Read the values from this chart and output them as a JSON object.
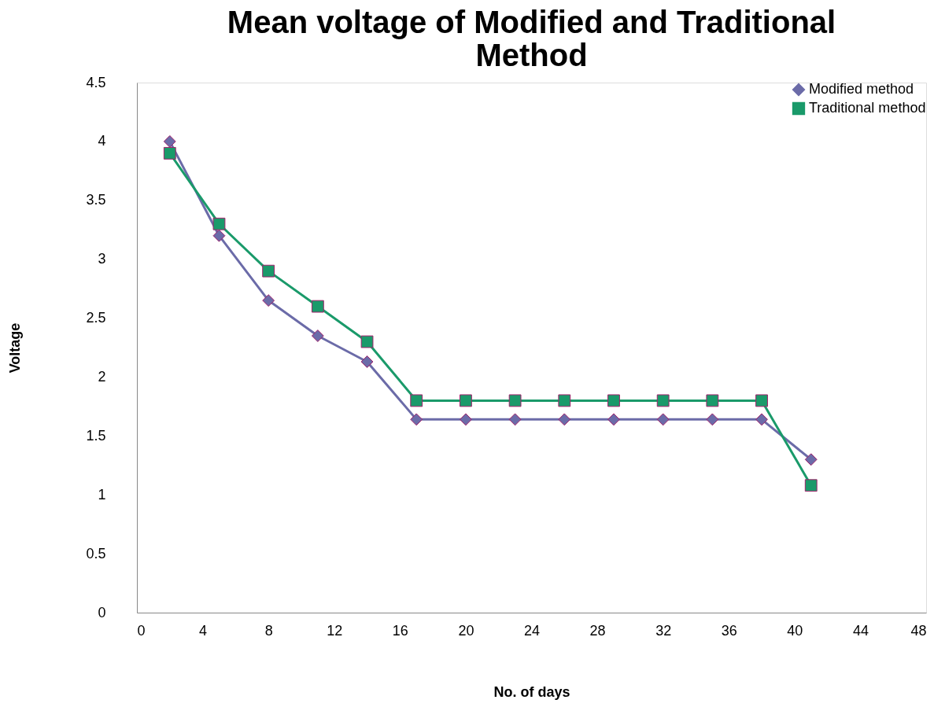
{
  "chart_data": {
    "type": "line",
    "title": "Mean voltage of Modified and Traditional Method",
    "xlabel": "No. of days",
    "ylabel": "Voltage",
    "x": [
      2,
      5,
      8,
      11,
      14,
      17,
      20,
      23,
      26,
      29,
      32,
      35,
      38,
      41
    ],
    "series": [
      {
        "name": "Modified method",
        "color": "#6b6ba8",
        "marker": "diamond",
        "values": [
          4.0,
          3.2,
          2.65,
          2.35,
          2.13,
          1.64,
          1.64,
          1.64,
          1.64,
          1.64,
          1.64,
          1.64,
          1.64,
          1.3
        ]
      },
      {
        "name": "Traditional method",
        "color": "#1a9a6a",
        "marker": "square",
        "values": [
          3.9,
          3.3,
          2.9,
          2.6,
          2.3,
          1.8,
          1.8,
          1.8,
          1.8,
          1.8,
          1.8,
          1.8,
          1.8,
          1.08
        ]
      }
    ],
    "xlim": [
      0,
      48
    ],
    "xticks": [
      0,
      4,
      8,
      12,
      16,
      20,
      24,
      28,
      32,
      36,
      40,
      44,
      48
    ],
    "ylim": [
      0,
      4.5
    ],
    "yticks": [
      0,
      0.5,
      1,
      1.5,
      2,
      2.5,
      3,
      3.5,
      4,
      4.5
    ],
    "grid": false,
    "legend": "top right",
    "line_style": "solid"
  }
}
